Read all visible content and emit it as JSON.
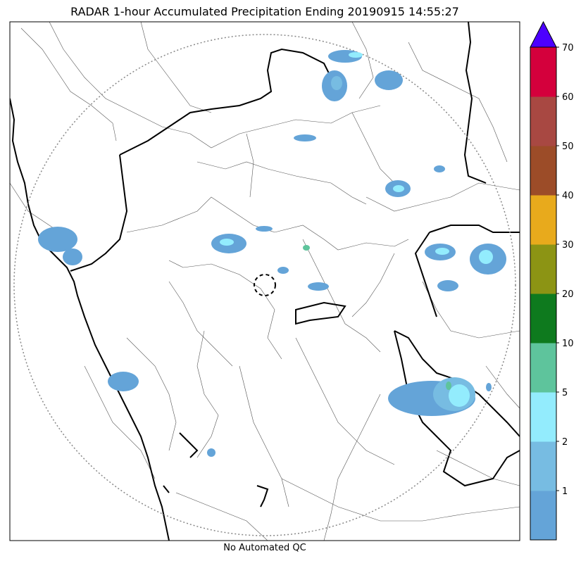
{
  "title": "RADAR 1-hour Accumulated Precipitation Ending 20190915 14:55:27",
  "footer": "No Automated QC",
  "legend": {
    "extend": "max",
    "ticks": [
      "1",
      "2",
      "5",
      "10",
      "20",
      "30",
      "40",
      "50",
      "60",
      "70"
    ],
    "levels": [
      {
        "color": "#64a4d8"
      },
      {
        "color": "#77bce2"
      },
      {
        "color": "#93ecfd"
      },
      {
        "color": "#5ec49c"
      },
      {
        "color": "#0e7a1e"
      },
      {
        "color": "#8c9414"
      },
      {
        "color": "#e8aa1c"
      },
      {
        "color": "#9c4c28"
      },
      {
        "color": "#a84842"
      },
      {
        "color": "#d4003c"
      }
    ],
    "extend_color": "#4c00ff"
  },
  "map_colors": {
    "coast": "#000000",
    "district": "#555555",
    "range_ring": "#888888"
  }
}
